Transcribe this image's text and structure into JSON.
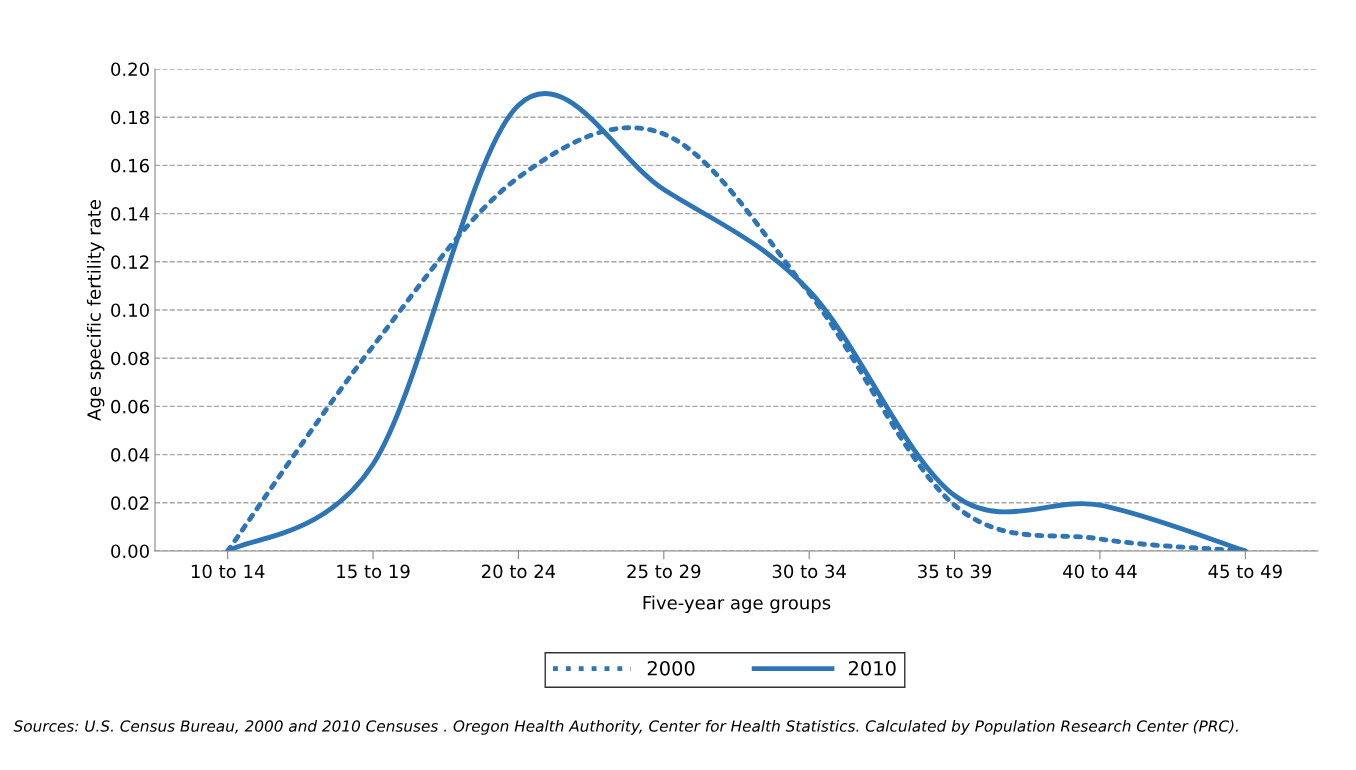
{
  "chart_data": {
    "type": "line",
    "xlabel": "Five-year age groups",
    "ylabel": "Age specific fertility rate",
    "categories": [
      "10 to 14",
      "15 to 19",
      "20 to 24",
      "25 to 29",
      "30 to 34",
      "35 to 39",
      "40 to 44",
      "45 to 49"
    ],
    "series": [
      {
        "name": "2000",
        "color": "#2e75b6",
        "line_style": "dotted",
        "values": [
          0.0,
          0.085,
          0.155,
          0.173,
          0.107,
          0.019,
          0.005,
          0.0
        ]
      },
      {
        "name": "2010",
        "color": "#2e75b6",
        "line_style": "solid",
        "values": [
          0.0,
          0.036,
          0.185,
          0.15,
          0.108,
          0.023,
          0.019,
          0.0
        ]
      }
    ],
    "ylim": [
      0,
      0.2
    ],
    "yticks": [
      {
        "value": 0,
        "label": "0.00"
      },
      {
        "value": 0.02,
        "label": "0.02"
      },
      {
        "value": 0.04,
        "label": "0.04"
      },
      {
        "value": 0.06,
        "label": "0.06"
      },
      {
        "value": 0.08,
        "label": "0.08"
      },
      {
        "value": 0.1,
        "label": "0.10"
      },
      {
        "value": 0.12,
        "label": "0.12"
      },
      {
        "value": 0.14,
        "label": "0.14"
      },
      {
        "value": 0.16,
        "label": "0.16"
      },
      {
        "value": 0.18,
        "label": "0.18"
      },
      {
        "value": 0.2,
        "label": "0.20"
      }
    ],
    "grid": "y",
    "legend": "bottom",
    "marker": "none",
    "annotations": [
      "Sources: U.S. Census Bureau, 2000 and 2010 Censuses . Oregon Health Authority, Center for Health Statistics. Calculated by Population Research Center (PRC)."
    ]
  }
}
